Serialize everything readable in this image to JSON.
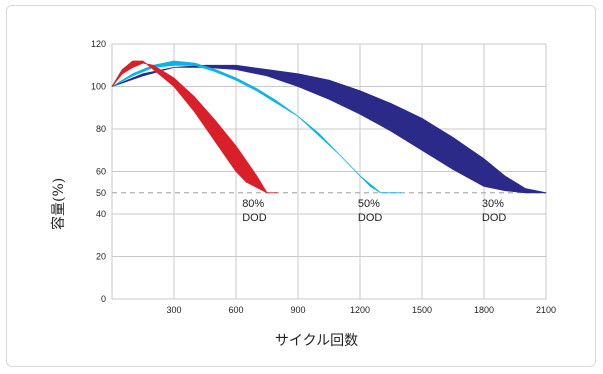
{
  "chart_data": {
    "type": "area",
    "xlabel": "サイクル回数",
    "ylabel": "容量(%)",
    "x_ticks": [
      300,
      600,
      900,
      1200,
      1500,
      1800,
      2100
    ],
    "y_ticks": [
      0,
      20,
      40,
      50,
      60,
      80,
      100,
      120
    ],
    "xlim": [
      0,
      2100
    ],
    "ylim": [
      0,
      120
    ],
    "grid": true,
    "reference_line": {
      "y": 50,
      "style": "dashed",
      "color": "#b0b0b0"
    },
    "series": [
      {
        "label_line1": "80%",
        "label_line2": "DOD",
        "label_anchor": {
          "x": 630,
          "y": 47
        },
        "color": "#d9202a",
        "upper": [
          [
            0,
            100
          ],
          [
            50,
            108
          ],
          [
            100,
            112
          ],
          [
            150,
            112
          ],
          [
            200,
            108
          ],
          [
            300,
            100
          ],
          [
            400,
            88
          ],
          [
            500,
            74
          ],
          [
            600,
            60
          ],
          [
            650,
            55
          ],
          [
            750,
            50
          ],
          [
            800,
            50
          ]
        ],
        "lower": [
          [
            800,
            50
          ],
          [
            750,
            50
          ],
          [
            700,
            58
          ],
          [
            600,
            72
          ],
          [
            500,
            84
          ],
          [
            400,
            95
          ],
          [
            300,
            104
          ],
          [
            200,
            110
          ],
          [
            150,
            111
          ],
          [
            100,
            109
          ],
          [
            50,
            106
          ],
          [
            0,
            100
          ]
        ]
      },
      {
        "label_line1": "50%",
        "label_line2": "DOD",
        "label_anchor": {
          "x": 1190,
          "y": 47
        },
        "color": "#0bb3ea",
        "upper": [
          [
            0,
            100
          ],
          [
            100,
            106
          ],
          [
            200,
            110
          ],
          [
            300,
            112
          ],
          [
            400,
            111
          ],
          [
            500,
            108
          ],
          [
            600,
            104
          ],
          [
            700,
            99
          ],
          [
            800,
            93
          ],
          [
            900,
            86
          ],
          [
            1000,
            77
          ],
          [
            1100,
            68
          ],
          [
            1200,
            58
          ],
          [
            1250,
            53
          ],
          [
            1300,
            50
          ],
          [
            1400,
            50
          ]
        ],
        "lower": [
          [
            1400,
            50
          ],
          [
            1300,
            50
          ],
          [
            1200,
            58
          ],
          [
            1100,
            68
          ],
          [
            1000,
            78
          ],
          [
            900,
            86
          ],
          [
            800,
            92
          ],
          [
            700,
            98
          ],
          [
            600,
            103
          ],
          [
            500,
            107
          ],
          [
            400,
            110
          ],
          [
            300,
            110
          ],
          [
            200,
            109
          ],
          [
            100,
            105
          ],
          [
            0,
            100
          ]
        ]
      },
      {
        "label_line1": "30%",
        "label_line2": "DOD",
        "label_anchor": {
          "x": 1790,
          "y": 47
        },
        "color": "#2b2a88",
        "upper": [
          [
            0,
            100
          ],
          [
            150,
            106
          ],
          [
            300,
            109
          ],
          [
            450,
            110
          ],
          [
            600,
            110
          ],
          [
            750,
            108
          ],
          [
            900,
            106
          ],
          [
            1050,
            103
          ],
          [
            1200,
            98
          ],
          [
            1350,
            92
          ],
          [
            1500,
            85
          ],
          [
            1650,
            76
          ],
          [
            1800,
            66
          ],
          [
            1900,
            58
          ],
          [
            2000,
            52
          ],
          [
            2100,
            50
          ]
        ],
        "lower": [
          [
            2100,
            50
          ],
          [
            2000,
            50
          ],
          [
            1900,
            51
          ],
          [
            1800,
            53
          ],
          [
            1650,
            61
          ],
          [
            1500,
            70
          ],
          [
            1350,
            79
          ],
          [
            1200,
            87
          ],
          [
            1050,
            94
          ],
          [
            900,
            100
          ],
          [
            750,
            105
          ],
          [
            600,
            108
          ],
          [
            450,
            109
          ],
          [
            300,
            109
          ],
          [
            150,
            105
          ],
          [
            0,
            100
          ]
        ]
      }
    ]
  }
}
